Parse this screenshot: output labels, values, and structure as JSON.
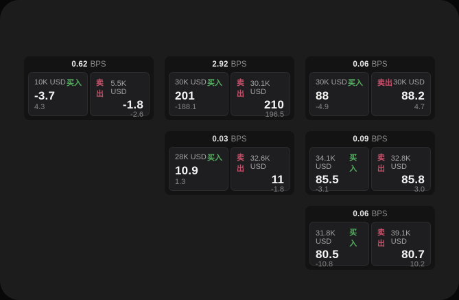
{
  "labels": {
    "bps_unit": "BPS",
    "buy": "买入",
    "sell": "卖出"
  },
  "colors": {
    "panel_bg": "#1c1c1d",
    "card_bg": "#131314",
    "subcard_bg": "#1e1e20",
    "buy_green": "#54ae5f",
    "sell_red": "#c9506a"
  },
  "cards": [
    {
      "col": 0,
      "row": 0,
      "bps": "0.62",
      "buy": {
        "size": "10K USD",
        "price": "-3.7",
        "sub": "4.3"
      },
      "sell": {
        "size": "5.5K USD",
        "price": "-1.8",
        "sub": "-2.6"
      }
    },
    {
      "col": 1,
      "row": 0,
      "bps": "2.92",
      "buy": {
        "size": "30K USD",
        "price": "201",
        "sub": "-188.1"
      },
      "sell": {
        "size": "30.1K USD",
        "price": "210",
        "sub": "196.5"
      }
    },
    {
      "col": 2,
      "row": 0,
      "bps": "0.06",
      "buy": {
        "size": "30K USD",
        "price": "88",
        "sub": "-4.9"
      },
      "sell": {
        "size": "30K USD",
        "price": "88.2",
        "sub": "4.7"
      }
    },
    {
      "col": 1,
      "row": 1,
      "bps": "0.03",
      "buy": {
        "size": "28K USD",
        "price": "10.9",
        "sub": "1.3"
      },
      "sell": {
        "size": "32.6K USD",
        "price": "11",
        "sub": "-1.8"
      }
    },
    {
      "col": 2,
      "row": 1,
      "bps": "0.09",
      "buy": {
        "size": "34.1K USD",
        "price": "85.5",
        "sub": "-3.1"
      },
      "sell": {
        "size": "32.8K USD",
        "price": "85.8",
        "sub": "3.0"
      }
    },
    {
      "col": 2,
      "row": 2,
      "bps": "0.06",
      "buy": {
        "size": "31.8K USD",
        "price": "80.5",
        "sub": "-10.8"
      },
      "sell": {
        "size": "39.1K USD",
        "price": "80.7",
        "sub": "10.2"
      }
    }
  ]
}
